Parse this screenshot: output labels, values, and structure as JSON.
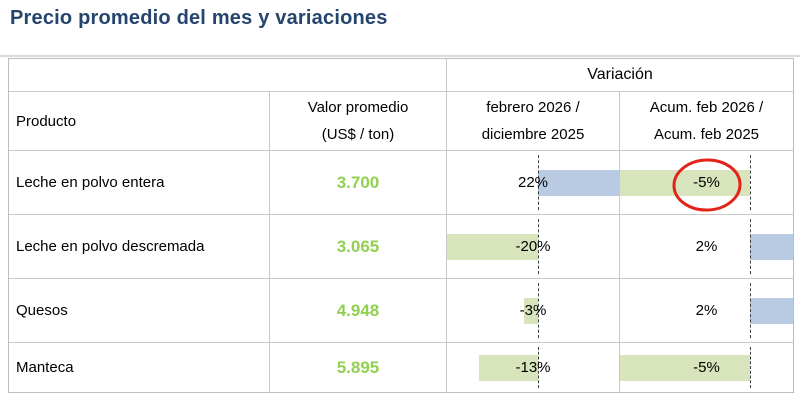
{
  "page_title": "Precio promedio del mes y variaciones",
  "title_color": "#26456e",
  "table": {
    "header": {
      "variacion": "Variación",
      "producto": "Producto",
      "valor_promedio_line1": "Valor promedio",
      "valor_promedio_line2": "(US$ / ton)",
      "feb_line1": "febrero 2026 /",
      "feb_line2": "diciembre 2025",
      "acum_line1": "Acum. feb 2026 /",
      "acum_line2": "Acum. feb 2025"
    },
    "value_color": "#92d050",
    "rows": [
      {
        "producto": "Leche en polvo entera",
        "valor": "3.700",
        "feb_dic": {
          "value": 22,
          "label": "22%"
        },
        "acum": {
          "value": -5,
          "label": "-5%"
        }
      },
      {
        "producto": "Leche en polvo descremada",
        "valor": "3.065",
        "feb_dic": {
          "value": -20,
          "label": "-20%"
        },
        "acum": {
          "value": 2,
          "label": "2%"
        }
      },
      {
        "producto": "Quesos",
        "valor": "4.948",
        "feb_dic": {
          "value": -3,
          "label": "-3%"
        },
        "acum": {
          "value": 2,
          "label": "2%"
        }
      },
      {
        "producto": "Manteca",
        "valor": "5.895",
        "feb_dic": {
          "value": -13,
          "label": "-13%"
        },
        "acum": {
          "value": -5,
          "label": "-5%"
        }
      }
    ]
  },
  "databars": {
    "colors": {
      "positive": "#b9cbe3",
      "negative": "#d8e4bc"
    },
    "columns": {
      "feb_dic": {
        "axis_pct": 53,
        "pos_max": 22,
        "neg_min": -20
      },
      "acum": {
        "axis_pct": 75,
        "pos_max": 2,
        "neg_min": -5
      }
    }
  },
  "annotation": {
    "type": "red-circle",
    "color": "#e2231a",
    "target_row": "Leche en polvo entera",
    "target_column": "Acum. feb 2026 / Acum. feb 2025",
    "circled_value": "-5%"
  },
  "chart_data": {
    "type": "table",
    "title": "Precio promedio del mes y variaciones",
    "columns": [
      "Producto",
      "Valor promedio (US$ / ton)",
      "Variación febrero 2026 / diciembre 2025 (%)",
      "Variación Acum. feb 2026 / Acum. feb 2025 (%)"
    ],
    "rows": [
      [
        "Leche en polvo entera",
        3700,
        22,
        -5
      ],
      [
        "Leche en polvo descremada",
        3065,
        -20,
        2
      ],
      [
        "Quesos",
        4948,
        -3,
        2
      ],
      [
        "Manteca",
        5895,
        -13,
        -5
      ]
    ],
    "databar_axis": {
      "feb_dic_range": [
        -20,
        22
      ],
      "acum_range": [
        -5,
        2
      ]
    },
    "databar_colors": {
      "positive_blue": "#b9cbe3",
      "negative_green": "#d8e4bc"
    },
    "annotation": "red circle around -5% (Leche en polvo entera, Acum. column)"
  }
}
